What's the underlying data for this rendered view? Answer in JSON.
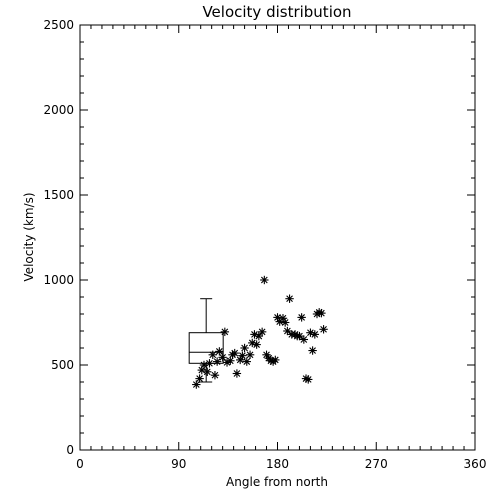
{
  "chart_data": {
    "type": "scatter",
    "title": "Velocity distribution",
    "xlabel": "Angle from north",
    "ylabel": "Velocity (km/s)",
    "xlim": [
      0,
      360
    ],
    "ylim": [
      0,
      2500
    ],
    "xticks": [
      0,
      90,
      180,
      270,
      360
    ],
    "yticks": [
      0,
      500,
      1000,
      1500,
      2000,
      2500
    ],
    "xtick_labels": [
      "0",
      "90",
      "180",
      "270",
      "360"
    ],
    "ytick_labels": [
      "0",
      "500",
      "1000",
      "1500",
      "2000",
      "2500"
    ],
    "marker": "asterisk",
    "grid": false,
    "box_summary": {
      "x": 115,
      "min": 400,
      "q1": 510,
      "median": 575,
      "q3": 690,
      "max": 890
    },
    "points": [
      {
        "x": 106,
        "y": 385
      },
      {
        "x": 109,
        "y": 420
      },
      {
        "x": 111,
        "y": 470
      },
      {
        "x": 113,
        "y": 500
      },
      {
        "x": 116,
        "y": 460
      },
      {
        "x": 118,
        "y": 510
      },
      {
        "x": 121,
        "y": 560
      },
      {
        "x": 123,
        "y": 440
      },
      {
        "x": 125,
        "y": 520
      },
      {
        "x": 127,
        "y": 580
      },
      {
        "x": 130,
        "y": 545
      },
      {
        "x": 132,
        "y": 695
      },
      {
        "x": 134,
        "y": 515
      },
      {
        "x": 137,
        "y": 525
      },
      {
        "x": 139,
        "y": 560
      },
      {
        "x": 141,
        "y": 570
      },
      {
        "x": 143,
        "y": 450
      },
      {
        "x": 146,
        "y": 530
      },
      {
        "x": 148,
        "y": 555
      },
      {
        "x": 150,
        "y": 600
      },
      {
        "x": 152,
        "y": 520
      },
      {
        "x": 155,
        "y": 560
      },
      {
        "x": 157,
        "y": 630
      },
      {
        "x": 159,
        "y": 680
      },
      {
        "x": 161,
        "y": 620
      },
      {
        "x": 163,
        "y": 670
      },
      {
        "x": 166,
        "y": 695
      },
      {
        "x": 168,
        "y": 1000
      },
      {
        "x": 170,
        "y": 560
      },
      {
        "x": 172,
        "y": 540
      },
      {
        "x": 174,
        "y": 525
      },
      {
        "x": 176,
        "y": 520
      },
      {
        "x": 178,
        "y": 530
      },
      {
        "x": 180,
        "y": 780
      },
      {
        "x": 182,
        "y": 755
      },
      {
        "x": 185,
        "y": 775
      },
      {
        "x": 187,
        "y": 750
      },
      {
        "x": 189,
        "y": 700
      },
      {
        "x": 191,
        "y": 890
      },
      {
        "x": 193,
        "y": 680
      },
      {
        "x": 196,
        "y": 680
      },
      {
        "x": 198,
        "y": 670
      },
      {
        "x": 200,
        "y": 670
      },
      {
        "x": 202,
        "y": 780
      },
      {
        "x": 204,
        "y": 650
      },
      {
        "x": 206,
        "y": 420
      },
      {
        "x": 208,
        "y": 415
      },
      {
        "x": 210,
        "y": 690
      },
      {
        "x": 212,
        "y": 585
      },
      {
        "x": 214,
        "y": 680
      },
      {
        "x": 216,
        "y": 800
      },
      {
        "x": 218,
        "y": 810
      },
      {
        "x": 220,
        "y": 805
      },
      {
        "x": 222,
        "y": 710
      }
    ]
  }
}
